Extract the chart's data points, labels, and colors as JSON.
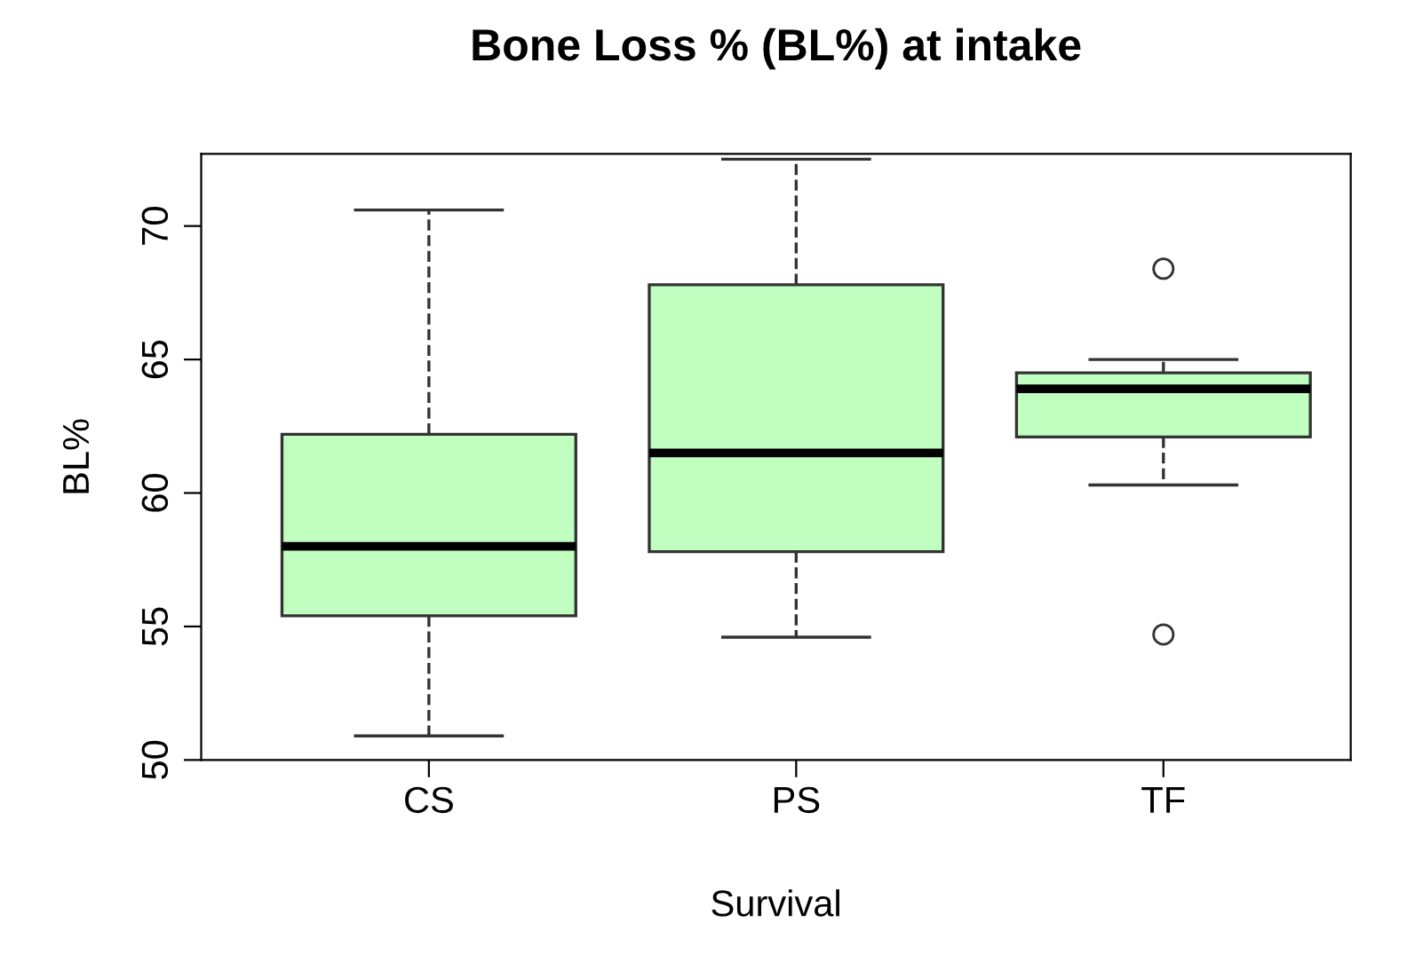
{
  "chart_data": {
    "type": "box",
    "title": "Bone Loss % (BL%) at intake",
    "xlabel": "Survival",
    "ylabel": "BL%",
    "categories": [
      "CS",
      "PS",
      "TF"
    ],
    "series": [
      {
        "color": "#c1ffc1",
        "boxes": [
          {
            "low": 50.9,
            "q1": 55.4,
            "median": 58.0,
            "q3": 62.2,
            "high": 70.6
          },
          {
            "low": 54.6,
            "q1": 57.8,
            "median": 61.5,
            "q3": 67.8,
            "high": 72.5
          },
          {
            "low": 60.3,
            "q1": 62.1,
            "median": 63.9,
            "q3": 64.5,
            "high": 65.0,
            "outliers": [
              68.4,
              54.7
            ]
          }
        ]
      }
    ],
    "ylim": [
      50,
      72.7
    ],
    "yticks": [
      50,
      55,
      60,
      65,
      70
    ],
    "grid": false,
    "legend": false,
    "line_style": "dashed",
    "marker": "circle"
  }
}
